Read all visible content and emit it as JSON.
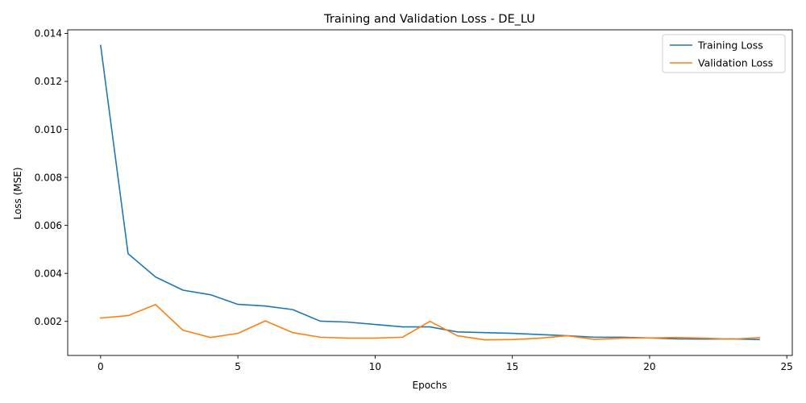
{
  "chart_data": {
    "type": "line",
    "title": "Training and Validation Loss - DE_LU",
    "xlabel": "Epochs",
    "ylabel": "Loss (MSE)",
    "xlim": [
      -1.2,
      25.2
    ],
    "ylim": [
      0.00058,
      0.01415
    ],
    "x_ticks": [
      0,
      5,
      10,
      15,
      20,
      25
    ],
    "x_tick_labels": [
      "0",
      "5",
      "10",
      "15",
      "20",
      "25"
    ],
    "y_ticks": [
      0.002,
      0.004,
      0.006,
      0.008,
      0.01,
      0.012,
      0.014
    ],
    "y_tick_labels": [
      "0.002",
      "0.004",
      "0.006",
      "0.008",
      "0.010",
      "0.012",
      "0.014"
    ],
    "grid": false,
    "legend_position": "top-right",
    "x": [
      0,
      1,
      2,
      3,
      4,
      5,
      6,
      7,
      8,
      9,
      10,
      11,
      12,
      13,
      14,
      15,
      16,
      17,
      18,
      19,
      20,
      21,
      22,
      23,
      24
    ],
    "series": [
      {
        "name": "Training Loss",
        "color": "#1f77b4",
        "values": [
          0.0135,
          0.00482,
          0.00385,
          0.0033,
          0.00311,
          0.00271,
          0.00264,
          0.00249,
          0.00201,
          0.00197,
          0.00187,
          0.00177,
          0.00177,
          0.00156,
          0.00153,
          0.0015,
          0.00145,
          0.0014,
          0.00134,
          0.00134,
          0.00131,
          0.00127,
          0.00126,
          0.00127,
          0.00124
        ]
      },
      {
        "name": "Validation Loss",
        "color": "#ff7f0e",
        "values": [
          0.00214,
          0.00224,
          0.0027,
          0.00163,
          0.00133,
          0.0015,
          0.00202,
          0.00153,
          0.00134,
          0.0013,
          0.0013,
          0.00134,
          0.002,
          0.0014,
          0.00123,
          0.00124,
          0.0013,
          0.0014,
          0.00125,
          0.0013,
          0.00131,
          0.00133,
          0.0013,
          0.00126,
          0.00132
        ]
      }
    ]
  }
}
